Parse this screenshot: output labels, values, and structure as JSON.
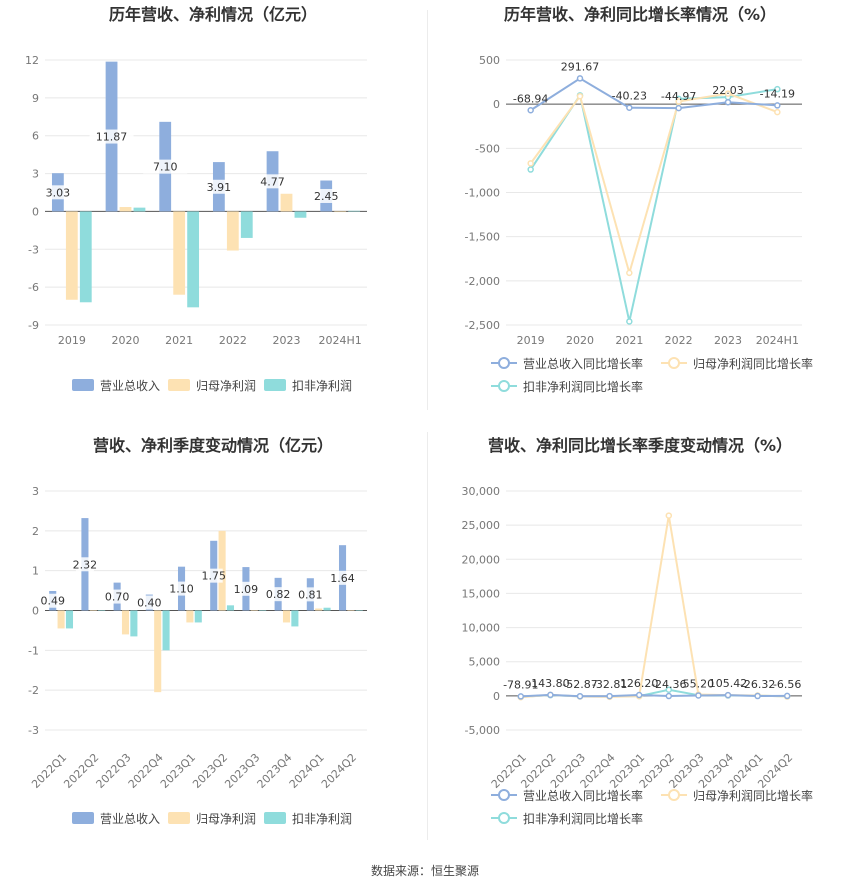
{
  "source": "数据来源：恒生聚源",
  "colors": {
    "revenue": "#8eaedd",
    "net_profit": "#fde2b3",
    "deducted_profit": "#8fdcdc",
    "grid": "#e8e8e8",
    "axis": "#555555",
    "text": "#333333",
    "tick": "#777777"
  },
  "chart_data": [
    {
      "id": "annual-amount",
      "type": "bar",
      "title": "历年营收、净利情况（亿元）",
      "categories": [
        "2019",
        "2020",
        "2021",
        "2022",
        "2023",
        "2024H1"
      ],
      "series": [
        {
          "name": "营业总收入",
          "values": [
            3.03,
            11.87,
            7.1,
            3.91,
            4.77,
            2.45
          ],
          "labels": [
            "3.03",
            "11.87",
            "7.10",
            "3.91",
            "4.77",
            "2.45"
          ]
        },
        {
          "name": "归母净利润",
          "values": [
            -7.0,
            0.35,
            -6.6,
            -3.1,
            1.4,
            -0.05
          ]
        },
        {
          "name": "扣非净利润",
          "values": [
            -7.2,
            0.3,
            -7.6,
            -2.1,
            -0.5,
            0.05
          ]
        }
      ],
      "yticks": [
        "12",
        "9",
        "6",
        "3",
        "0",
        "-3",
        "-6",
        "-9"
      ],
      "ylim": [
        -9,
        12
      ],
      "grid": true,
      "legend": "bottom"
    },
    {
      "id": "annual-growth",
      "type": "line",
      "title": "历年营收、净利同比增长率情况（%）",
      "categories": [
        "2019",
        "2020",
        "2021",
        "2022",
        "2023",
        "2024H1"
      ],
      "series": [
        {
          "name": "营业总收入同比增长率",
          "values": [
            -68.94,
            291.67,
            -40.23,
            -44.97,
            22.03,
            -14.19
          ],
          "labels": [
            "-68.94",
            "291.67",
            "-40.23",
            "-44.97",
            "22.03",
            "-14.19"
          ]
        },
        {
          "name": "归母净利润同比增长率",
          "values": [
            -670,
            90,
            -1910,
            30,
            120,
            -90
          ]
        },
        {
          "name": "扣非净利润同比增长率",
          "values": [
            -740,
            100,
            -2460,
            60,
            80,
            170
          ]
        }
      ],
      "yticks": [
        "500",
        "0",
        "-500",
        "-1,000",
        "-1,500",
        "-2,000",
        "-2,500"
      ],
      "ylim": [
        -2500,
        500
      ],
      "grid": true,
      "legend": "bottom"
    },
    {
      "id": "quarterly-amount",
      "type": "bar",
      "title": "营收、净利季度变动情况（亿元）",
      "categories": [
        "2022Q1",
        "2022Q2",
        "2022Q3",
        "2022Q4",
        "2023Q1",
        "2023Q2",
        "2023Q3",
        "2023Q4",
        "2024Q1",
        "2024Q2"
      ],
      "series": [
        {
          "name": "营业总收入",
          "values": [
            0.49,
            2.32,
            0.7,
            0.4,
            1.1,
            1.75,
            1.09,
            0.82,
            0.81,
            1.64
          ],
          "labels": [
            "0.49",
            "2.32",
            "0.70",
            "0.40",
            "1.10",
            "1.75",
            "1.09",
            "0.82",
            "0.81",
            "1.64"
          ]
        },
        {
          "name": "归母净利润",
          "values": [
            -0.45,
            0.0,
            -0.6,
            -2.05,
            -0.3,
            2.0,
            0.0,
            -0.3,
            0.05,
            0.01
          ]
        },
        {
          "name": "扣非净利润",
          "values": [
            -0.45,
            0.0,
            -0.65,
            -1.0,
            -0.3,
            0.13,
            0.0,
            -0.4,
            0.07,
            0.01
          ]
        }
      ],
      "yticks": [
        "3",
        "2",
        "1",
        "0",
        "-1",
        "-2",
        "-3"
      ],
      "ylim": [
        -3,
        3
      ],
      "grid": true,
      "legend": "bottom"
    },
    {
      "id": "quarterly-growth",
      "type": "line",
      "title": "营收、净利同比增长率季度变动情况（%）",
      "categories": [
        "2022Q1",
        "2022Q2",
        "2022Q3",
        "2022Q4",
        "2023Q1",
        "2023Q2",
        "2023Q3",
        "2023Q4",
        "2024Q1",
        "2024Q2"
      ],
      "series": [
        {
          "name": "营业总收入同比增长率",
          "values": [
            -78.91,
            143.8,
            -52.87,
            -32.81,
            126.2,
            -24.36,
            55.2,
            105.42,
            -26.32,
            -6.56
          ],
          "labels": [
            "-78.91",
            "143.80",
            "-52.87",
            "-32.81",
            "126.20",
            "-24.36",
            "55.20",
            "105.42",
            "-26.32",
            "-6.56"
          ]
        },
        {
          "name": "归母净利润同比增长率",
          "values": [
            -200,
            150,
            -100,
            -150,
            -50,
            26400,
            200,
            100,
            50,
            -100
          ]
        },
        {
          "name": "扣非净利润同比增长率",
          "values": [
            -150,
            100,
            -80,
            -100,
            -30,
            900,
            100,
            50,
            30,
            -80
          ]
        }
      ],
      "yticks": [
        "30,000",
        "25,000",
        "20,000",
        "15,000",
        "10,000",
        "5,000",
        "0",
        "-5,000"
      ],
      "ylim": [
        -5000,
        30000
      ],
      "grid": true,
      "legend": "bottom"
    }
  ]
}
